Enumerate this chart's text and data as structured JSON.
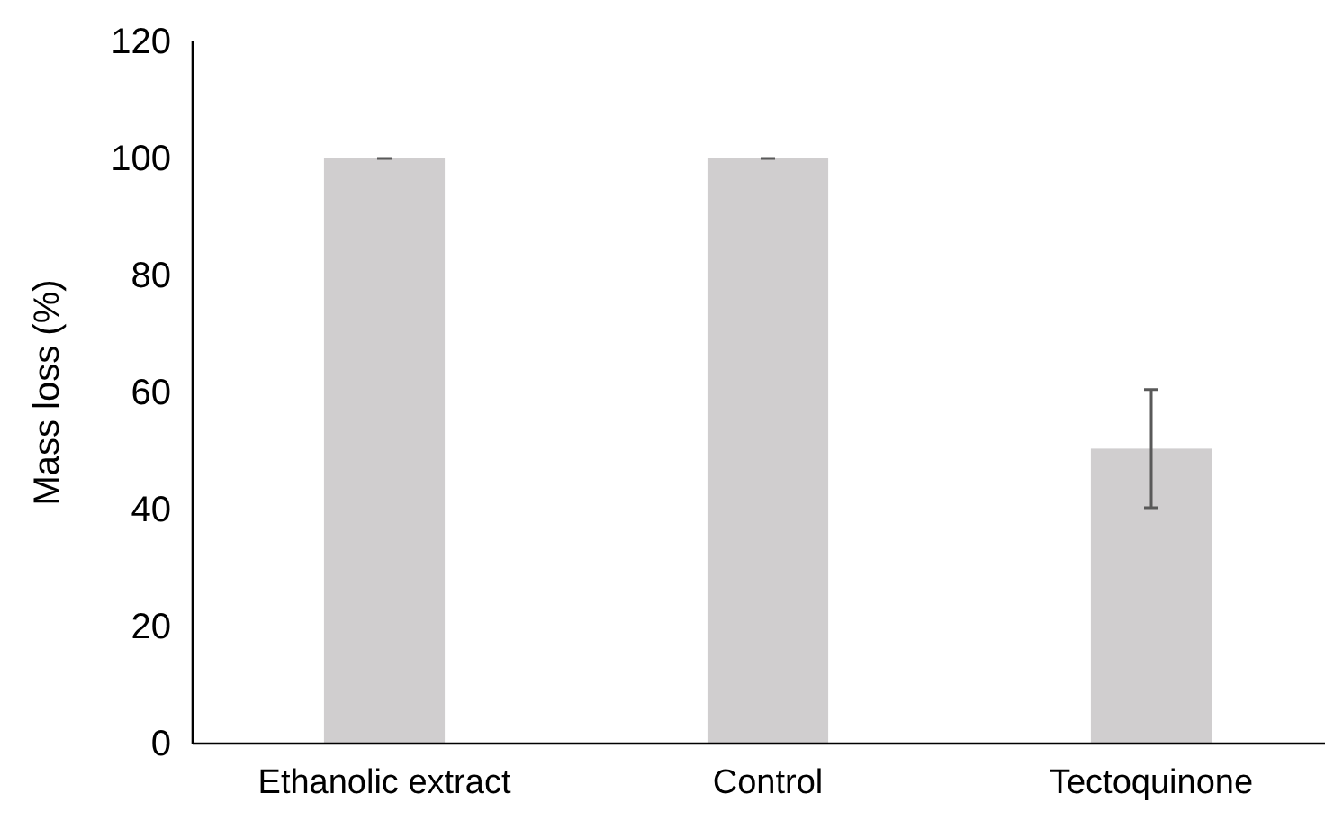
{
  "chart_data": {
    "type": "bar",
    "ylabel": "Mass loss (%)",
    "categories": [
      "Ethanolic extract",
      "Control",
      "Tectoquinone"
    ],
    "values": [
      100,
      100,
      50.4
    ],
    "errors": [
      0,
      0,
      10.1
    ],
    "color": "#d0cecf",
    "ylim": [
      0,
      120
    ],
    "yticks": [
      0,
      20,
      40,
      60,
      80,
      100,
      120
    ],
    "grid": false
  }
}
